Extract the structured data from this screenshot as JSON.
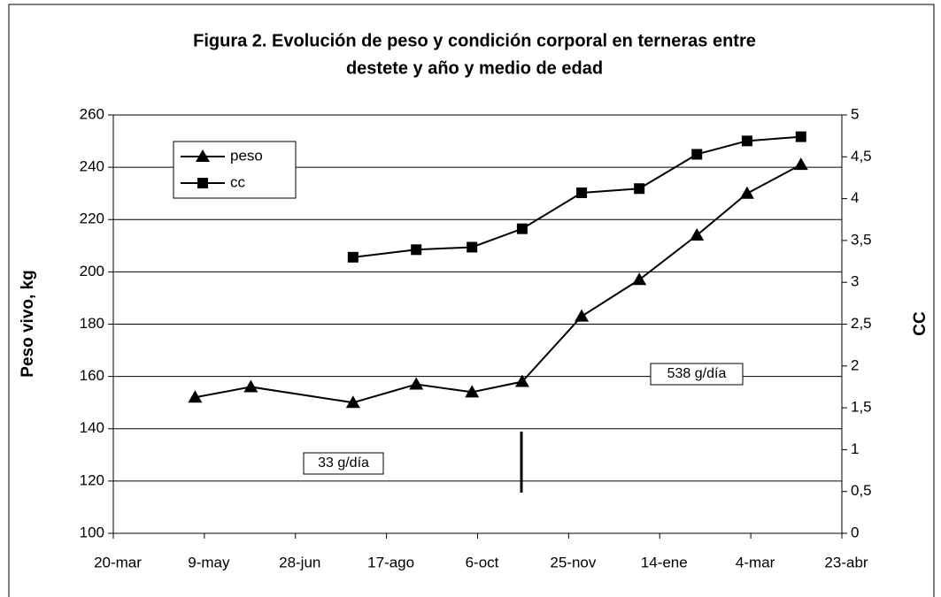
{
  "chart_data": {
    "type": "line",
    "title": [
      "Figura 2. Evolución de peso y condición corporal en terneras entre",
      "destete y año y medio de edad"
    ],
    "ylabel": "Peso vivo, kg",
    "y2label": "CC",
    "xlim": [
      0,
      392
    ],
    "xticks": [
      {
        "value": 0,
        "label": "20-mar"
      },
      {
        "value": 49,
        "label": "9-may"
      },
      {
        "value": 98,
        "label": "28-jun"
      },
      {
        "value": 147,
        "label": "17-ago"
      },
      {
        "value": 196,
        "label": "6-oct"
      },
      {
        "value": 245,
        "label": "25-nov"
      },
      {
        "value": 294,
        "label": "14-ene"
      },
      {
        "value": 343,
        "label": "4-mar"
      },
      {
        "value": 392,
        "label": "23-abr"
      }
    ],
    "ylim": [
      100,
      260
    ],
    "yticks": [
      100,
      120,
      140,
      160,
      180,
      200,
      220,
      240,
      260
    ],
    "y2lim": [
      0,
      5
    ],
    "y2ticks": [
      0,
      {
        "value": 0.5,
        "label": "0,5"
      },
      1,
      {
        "value": 1.5,
        "label": "1,5"
      },
      2,
      {
        "value": 2.5,
        "label": "2,5"
      },
      3,
      {
        "value": 3.5,
        "label": "3,5"
      },
      4,
      {
        "value": 4.5,
        "label": "4,5"
      },
      5
    ],
    "grid": true,
    "legend": "upper left",
    "series": [
      {
        "name": "peso",
        "color": "#000000",
        "marker": "triangle",
        "x": [
          44,
          74,
          129,
          163,
          193,
          220,
          252,
          283,
          314,
          341,
          370
        ],
        "values": [
          152,
          156,
          150,
          157,
          154,
          158,
          183,
          197,
          214,
          230,
          241
        ]
      },
      {
        "name": "cc",
        "color": "#000000",
        "marker": "square",
        "axis": "y2",
        "x": [
          129,
          163,
          193,
          220,
          252,
          283,
          314,
          341,
          370
        ],
        "values": [
          3.3,
          3.39,
          3.42,
          3.64,
          4.07,
          4.12,
          4.53,
          4.69,
          4.74
        ]
      }
    ],
    "annotations": [
      "538 g/día",
      "33 g/día"
    ]
  }
}
